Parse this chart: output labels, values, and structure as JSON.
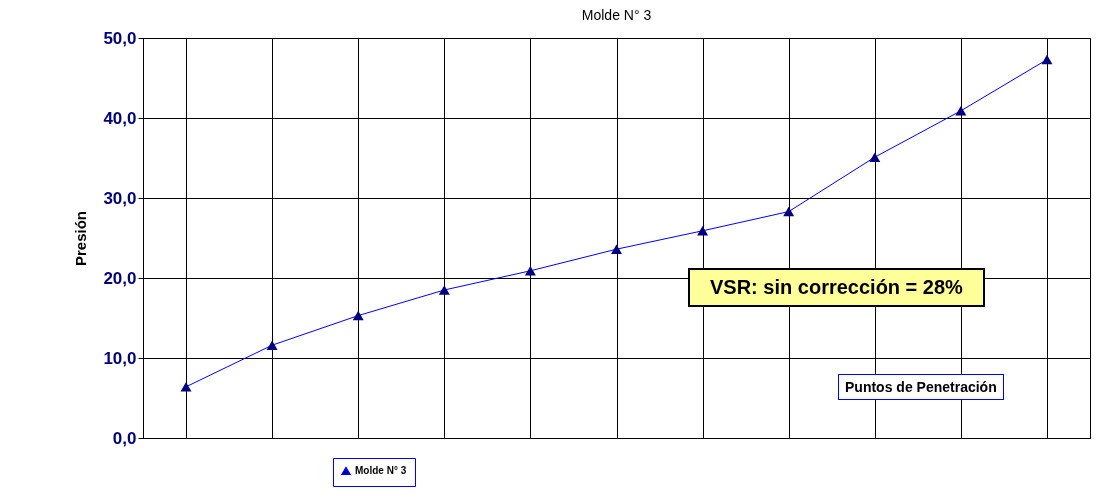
{
  "chart_data": {
    "type": "line",
    "title": "Molde N° 3",
    "ylabel": "Presión",
    "categories": [
      null,
      null,
      null,
      null,
      null,
      null,
      null,
      null,
      null,
      null,
      null
    ],
    "series": [
      {
        "name": "Molde N° 3",
        "color": "#0000ff",
        "values": [
          6.4,
          11.6,
          15.3,
          18.5,
          20.9,
          23.6,
          25.9,
          28.3,
          35.1,
          40.9,
          47.3
        ]
      }
    ],
    "ylim": [
      0,
      50
    ],
    "yticks": [
      {
        "value": 0,
        "label": "0,0"
      },
      {
        "value": 10,
        "label": "10,0"
      },
      {
        "value": 20,
        "label": "20,0"
      },
      {
        "value": 30,
        "label": "30,0"
      },
      {
        "value": 40,
        "label": "40,0"
      },
      {
        "value": 50,
        "label": "50,0"
      }
    ],
    "annotations": [
      "VSR:  sin corrección = 28%",
      "Puntos de Penetración"
    ],
    "grid": true,
    "legend": "bottom",
    "tick_labels": "y",
    "marker": "triangle",
    "line_style": "solid"
  }
}
